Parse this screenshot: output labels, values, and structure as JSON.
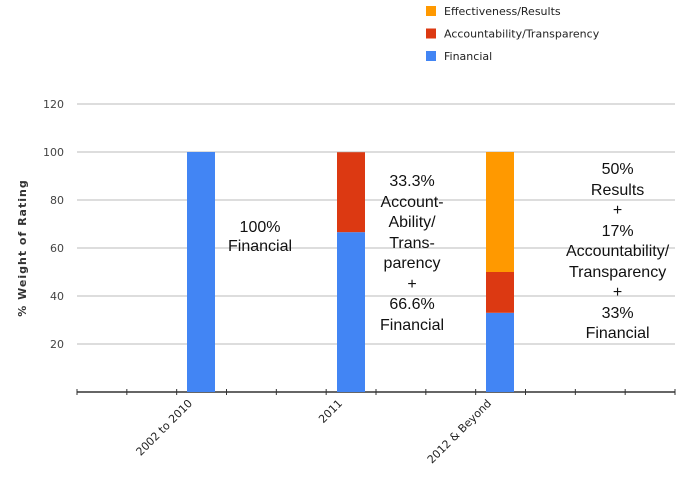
{
  "chart_data": {
    "type": "bar",
    "stacked": true,
    "title": "",
    "xlabel": "",
    "ylabel": "% Weight of Rating",
    "ylim": [
      0,
      120
    ],
    "yticks": [
      20,
      40,
      60,
      80,
      100,
      120
    ],
    "grid": true,
    "legend_position": "top-right",
    "categories": [
      "2002 to 2010",
      "2011",
      "2012 & Beyond"
    ],
    "series": [
      {
        "name": "Financial",
        "color": "#4285f4",
        "values": [
          100,
          66.6,
          33
        ]
      },
      {
        "name": "Accountability/Transparency",
        "color": "#dc3912",
        "values": [
          0,
          33.3,
          17
        ]
      },
      {
        "name": "Effectiveness/Results",
        "color": "#ff9900",
        "values": [
          0,
          0,
          50
        ]
      }
    ],
    "annotations": [
      "100%\nFinancial",
      "33.3%\nAccount-\nAbility/\nTrans-\nparency\n+\n66.6%\nFinancial",
      "50%\nResults\n+\n17%\nAccountability/\nTransparency\n+\n33%\nFinancial"
    ]
  }
}
